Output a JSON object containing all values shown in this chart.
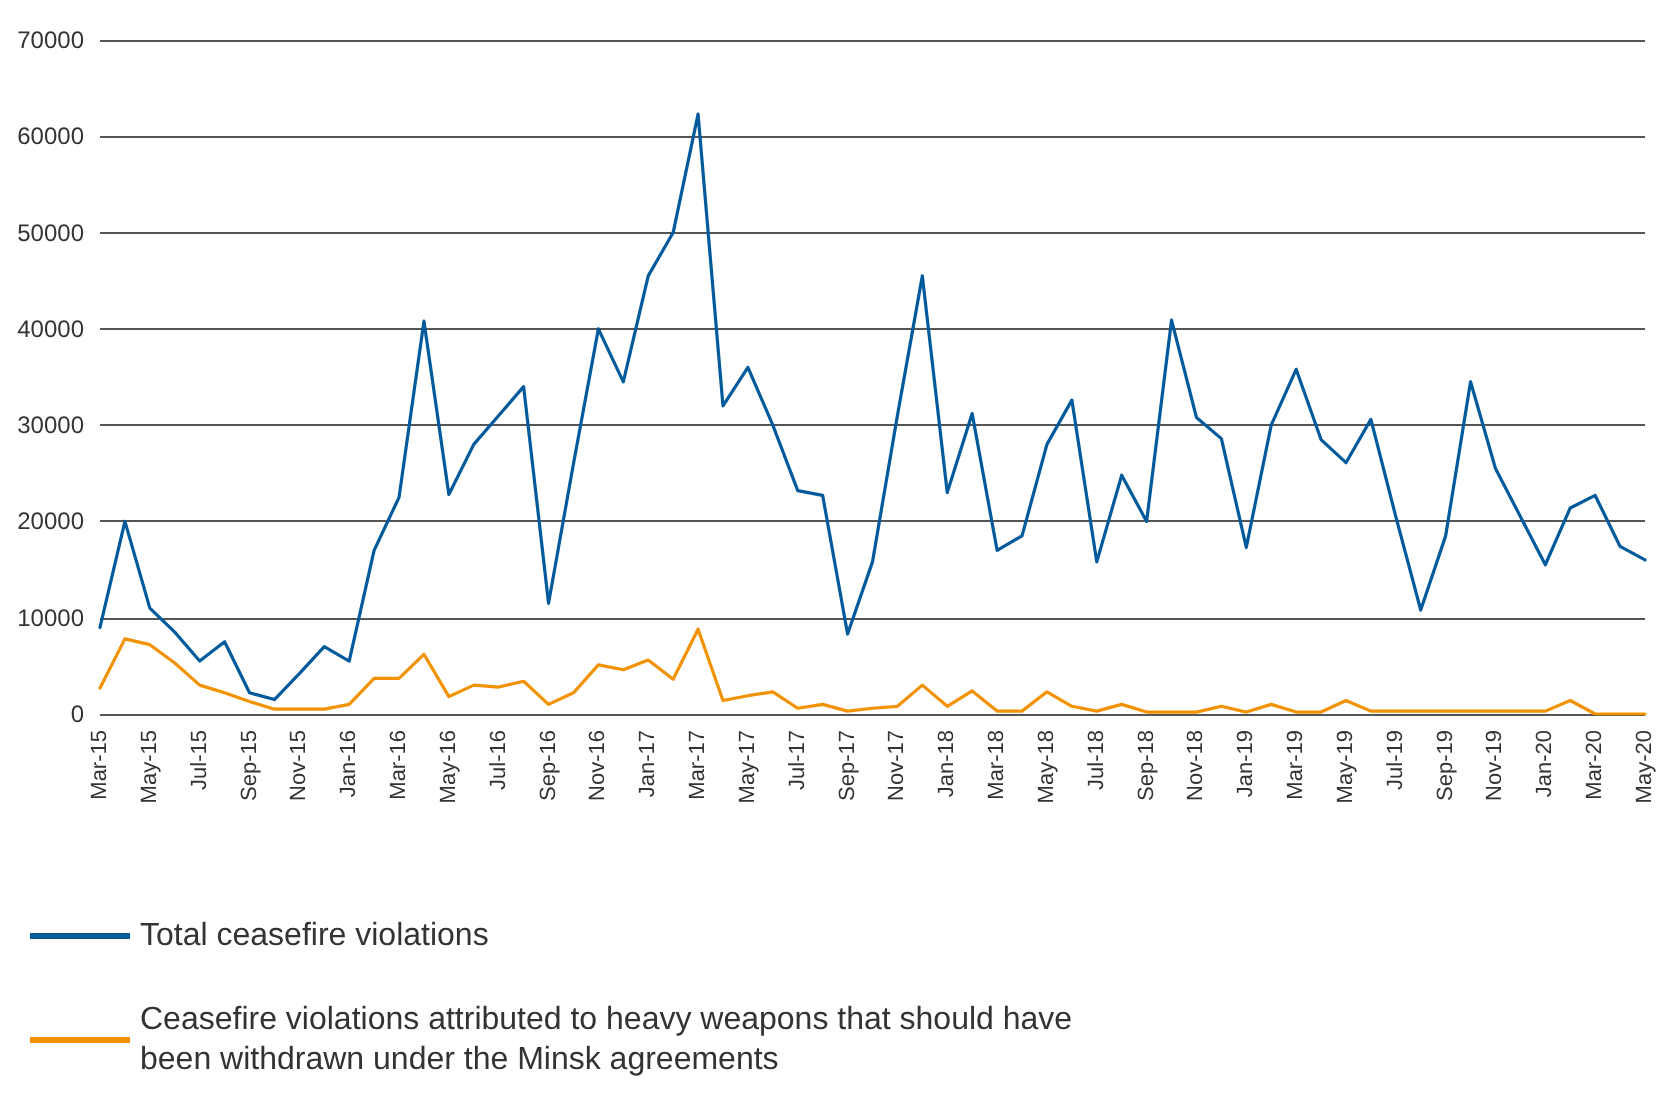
{
  "chart_data": {
    "type": "line",
    "categories": [
      "Mar-15",
      null,
      "May-15",
      null,
      "Jul-15",
      null,
      "Sep-15",
      null,
      "Nov-15",
      null,
      "Jan-16",
      null,
      "Mar-16",
      null,
      "May-16",
      null,
      "Jul-16",
      null,
      "Sep-16",
      null,
      "Nov-16",
      null,
      "Jan-17",
      null,
      "Mar-17",
      null,
      "May-17",
      null,
      "Jul-17",
      null,
      "Sep-17",
      null,
      "Nov-17",
      null,
      "Jan-18",
      null,
      "Mar-18",
      null,
      "May-18",
      null,
      "Jul-18",
      null,
      "Sep-18",
      null,
      "Nov-18",
      null,
      "Jan-19",
      null,
      "Mar-19",
      null,
      "May-19",
      null,
      "Jul-19",
      null,
      "Sep-19",
      null,
      "Nov-19",
      null,
      "Jan-20",
      null,
      "Mar-20",
      null,
      "May-20"
    ],
    "series": [
      {
        "name": "Total ceasefire violations",
        "color": "#005a9c",
        "values": [
          9000,
          20000,
          11000,
          8500,
          5500,
          7500,
          2200,
          1500,
          4200,
          7000,
          5500,
          17000,
          22500,
          40800,
          22800,
          28000,
          31000,
          34000,
          11500,
          26000,
          40000,
          34500,
          45500,
          50000,
          62300,
          32000,
          36000,
          30000,
          23200,
          22700,
          8300,
          15800,
          31000,
          45500,
          23000,
          31200,
          17000,
          18500,
          28000,
          32600,
          15800,
          24800,
          20000,
          40900,
          30800,
          28600,
          17300,
          30000,
          35800,
          28500,
          26100,
          30600,
          20500,
          10800,
          18500,
          34500,
          25500,
          20500,
          15500,
          21400,
          22700,
          17400,
          16000
        ]
      },
      {
        "name": "Ceasefire violations attributed to heavy weapons that should have been withdrawn under the Minsk agreements",
        "color": "#f39200",
        "values": [
          2700,
          7800,
          7200,
          5300,
          3000,
          2200,
          1300,
          500,
          500,
          500,
          1000,
          3700,
          3700,
          6200,
          1800,
          3000,
          2800,
          3400,
          1000,
          2200,
          5100,
          4600,
          5600,
          3600,
          8800,
          1400,
          1900,
          2300,
          600,
          1000,
          300,
          600,
          800,
          3000,
          800,
          2400,
          300,
          300,
          2300,
          800,
          300,
          1000,
          200,
          200,
          200,
          800,
          200,
          1000,
          200,
          200,
          1400,
          300,
          300,
          300,
          300,
          300,
          300,
          300,
          300,
          1400,
          0,
          0,
          0
        ]
      }
    ],
    "ylim": [
      0,
      70000
    ],
    "yticks": [
      0,
      10000,
      20000,
      30000,
      40000,
      50000,
      60000,
      70000
    ],
    "grid": "y",
    "legend": "bottom left",
    "marker": "none",
    "line_style": "solid"
  }
}
